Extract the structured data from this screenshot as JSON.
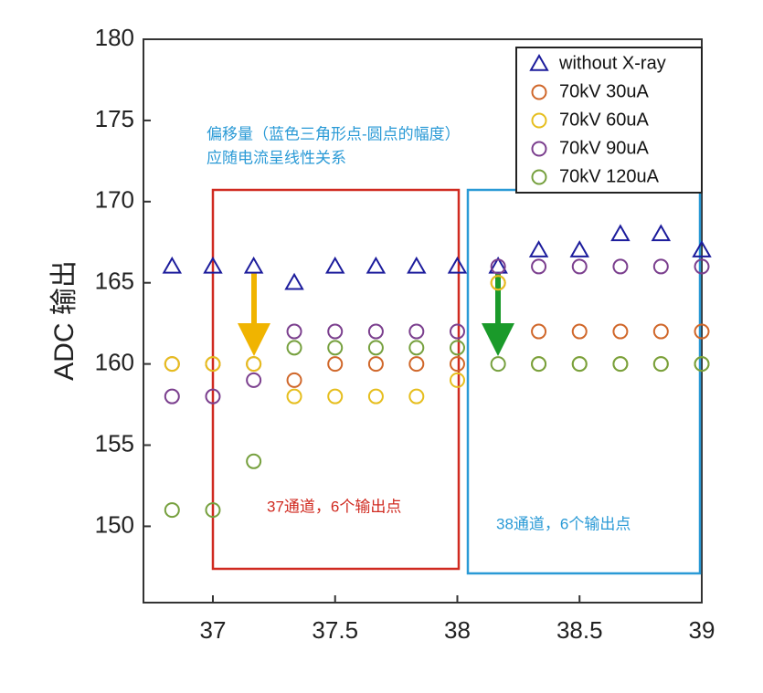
{
  "chart_data": {
    "type": "scatter",
    "ylabel": "ADC 输出",
    "x": [
      36.833,
      37,
      37.167,
      37.333,
      37.5,
      37.667,
      37.833,
      38,
      38.167,
      38.333,
      38.5,
      38.667,
      38.833,
      39
    ],
    "series": [
      {
        "name": "without X-ray",
        "color": "#1c1c9c",
        "marker": "triangle",
        "values": [
          166,
          166,
          166,
          165,
          166,
          166,
          166,
          166,
          166,
          167,
          167,
          168,
          168,
          167
        ]
      },
      {
        "name": "70kV 30uA",
        "color": "#d0672a",
        "marker": "circle",
        "values": [
          160,
          160,
          160,
          159,
          160,
          160,
          160,
          160,
          165,
          162,
          162,
          162,
          162,
          162
        ]
      },
      {
        "name": "70kV 60uA",
        "color": "#e6be1e",
        "marker": "circle",
        "values": [
          160,
          160,
          160,
          158,
          158,
          158,
          158,
          159,
          165,
          160,
          160,
          160,
          160,
          160
        ]
      },
      {
        "name": "70kV 90uA",
        "color": "#7b3f8e",
        "marker": "circle",
        "values": [
          158,
          158,
          159,
          162,
          162,
          162,
          162,
          162,
          166,
          166,
          166,
          166,
          166,
          166
        ]
      },
      {
        "name": "70kV 120uA",
        "color": "#76a03e",
        "marker": "circle",
        "values": [
          151,
          151,
          154,
          161,
          161,
          161,
          161,
          161,
          160,
          160,
          160,
          160,
          160,
          160
        ]
      }
    ],
    "xlim": [
      36.716,
      39
    ],
    "xticks": [
      37,
      37.5,
      38,
      38.5,
      39
    ],
    "ylim": [
      145.3,
      180
    ],
    "yticks": [
      150,
      155,
      160,
      165,
      170,
      175,
      180
    ],
    "legend": "upper right",
    "annotations": [
      "偏移量（蓝色三角形点-圆点的幅度）",
      "应随电流呈线性关系",
      "37通道，6个输出点",
      "38通道，6个输出点"
    ]
  }
}
